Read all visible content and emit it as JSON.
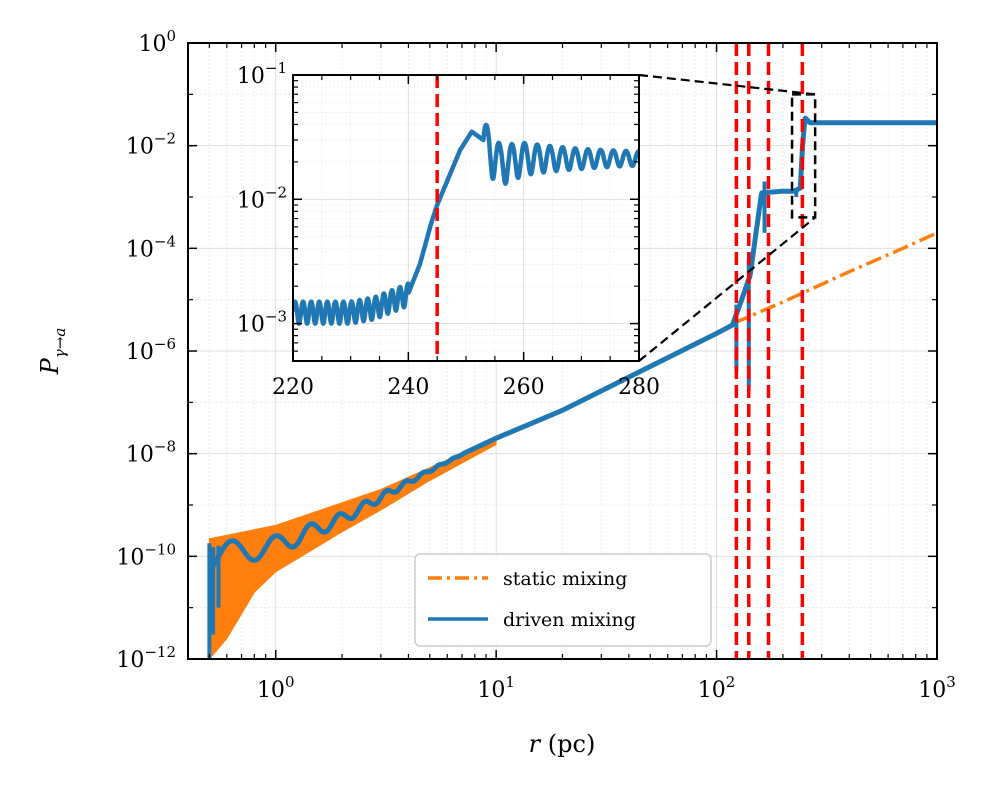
{
  "chart_data": [
    {
      "id": "main",
      "type": "line",
      "xscale": "log",
      "yscale": "log",
      "xlabel_var": "r",
      "xlabel_unit": "(pc)",
      "ylabel_var": "P",
      "ylabel_sub": "γ→a",
      "xlim": [
        0.4,
        1000
      ],
      "ylim": [
        1e-12,
        1
      ],
      "x_ticks": [
        {
          "value": 1,
          "base": "10",
          "exp": "0"
        },
        {
          "value": 10,
          "base": "10",
          "exp": "1"
        },
        {
          "value": 100,
          "base": "10",
          "exp": "2"
        },
        {
          "value": 1000,
          "base": "10",
          "exp": "3"
        }
      ],
      "y_ticks": [
        {
          "value": 1e-12,
          "base": "10",
          "exp": "−12"
        },
        {
          "value": 1e-10,
          "base": "10",
          "exp": "−10"
        },
        {
          "value": 1e-08,
          "base": "10",
          "exp": "−8"
        },
        {
          "value": 1e-06,
          "base": "10",
          "exp": "−6"
        },
        {
          "value": 0.0001,
          "base": "10",
          "exp": "−4"
        },
        {
          "value": 0.01,
          "base": "10",
          "exp": "−2"
        },
        {
          "value": 1,
          "base": "10",
          "exp": "0"
        }
      ],
      "grid": true,
      "legend_position": "bottom-right",
      "series": [
        {
          "name": "static mixing",
          "color": "#ff7f0e",
          "style": "dash-dot",
          "points": [
            [
              0.5,
              2.2e-10
            ],
            [
              1,
              4e-10
            ],
            [
              3,
              2e-09
            ],
            [
              10,
              2e-08
            ],
            [
              40,
              3e-07
            ],
            [
              120,
              3.5e-06
            ],
            [
              200,
              9e-06
            ],
            [
              400,
              3.5e-05
            ],
            [
              700,
              0.0001
            ],
            [
              1000,
              0.0002
            ]
          ],
          "envelope_lower": [
            [
              0.5,
              1e-12
            ],
            [
              0.6,
              2.5e-12
            ],
            [
              0.8,
              2e-11
            ],
            [
              1,
              5e-11
            ],
            [
              2,
              3e-10
            ],
            [
              3,
              8e-10
            ],
            [
              5,
              3e-09
            ],
            [
              8,
              9e-09
            ],
            [
              10,
              1.5e-08
            ]
          ]
        },
        {
          "name": "driven mixing",
          "color": "#1f77b4",
          "style": "solid",
          "points": [
            [
              0.5,
              1.8e-10
            ],
            [
              1,
              2.5e-10
            ],
            [
              2,
              7e-10
            ],
            [
              5,
              5e-09
            ],
            [
              10,
              2e-08
            ],
            [
              20,
              7e-08
            ],
            [
              50,
              5e-07
            ],
            [
              100,
              2.2e-06
            ],
            [
              118,
              3.2e-06
            ],
            [
              130,
              1e-05
            ],
            [
              142,
              3e-05
            ],
            [
              160,
              0.0012
            ],
            [
              200,
              0.0013
            ],
            [
              225,
              0.0013
            ],
            [
              240,
              0.0015
            ],
            [
              245,
              0.009
            ],
            [
              252,
              0.035
            ],
            [
              265,
              0.028
            ],
            [
              280,
              0.028
            ],
            [
              400,
              0.028
            ],
            [
              1000,
              0.028
            ]
          ],
          "spikes": [
            {
              "x": 123,
              "low": 4e-07,
              "high": 8e-06
            },
            {
              "x": 140,
              "low": 2e-07,
              "high": 6e-05
            },
            {
              "x": 165,
              "low": 0.0002,
              "high": 0.002
            },
            {
              "x": 230,
              "low": 0.001,
              "high": 0.0015
            }
          ]
        }
      ],
      "vlines": [
        {
          "x": 123,
          "color": "#ff0000"
        },
        {
          "x": 140,
          "color": "#ff0000"
        },
        {
          "x": 172,
          "color": "#ff0000"
        },
        {
          "x": 245,
          "color": "#ff0000"
        }
      ],
      "zoom_box": {
        "x": [
          220,
          280
        ],
        "y": [
          0.0004,
          0.1
        ]
      }
    },
    {
      "id": "inset",
      "type": "line",
      "xscale": "linear",
      "yscale": "log",
      "xlim": [
        220,
        280
      ],
      "ylim": [
        0.0005,
        0.1
      ],
      "x_ticks": [
        {
          "value": 220,
          "label": "220"
        },
        {
          "value": 240,
          "label": "240"
        },
        {
          "value": 260,
          "label": "260"
        },
        {
          "value": 280,
          "label": "280"
        }
      ],
      "y_ticks": [
        {
          "value": 0.001,
          "base": "10",
          "exp": "−3"
        },
        {
          "value": 0.01,
          "base": "10",
          "exp": "−2"
        },
        {
          "value": 0.1,
          "base": "10",
          "exp": "−1"
        }
      ],
      "series": [
        {
          "name": "driven mixing",
          "color": "#1f77b4",
          "base_points": [
            [
              220,
              0.00125
            ],
            [
              230,
              0.00125
            ],
            [
              234,
              0.00135
            ],
            [
              238,
              0.0016
            ],
            [
              240,
              0.00175
            ],
            [
              242,
              0.003
            ],
            [
              244,
              0.0065
            ],
            [
              245,
              0.009
            ],
            [
              247,
              0.015
            ],
            [
              249,
              0.025
            ],
            [
              251,
              0.035
            ],
            [
              253,
              0.03
            ],
            [
              256,
              0.02
            ],
            [
              260,
              0.022
            ],
            [
              270,
              0.0215
            ],
            [
              280,
              0.0215
            ]
          ],
          "oscillation": {
            "x_range": [
              220,
              240
            ],
            "period": 1.4,
            "rel_amplitude": 0.2
          }
        }
      ],
      "vlines": [
        {
          "x": 245,
          "color": "#ff0000"
        }
      ]
    }
  ],
  "legend": [
    {
      "label": "static mixing",
      "color": "#ff7f0e",
      "style": "dash-dot"
    },
    {
      "label": "driven mixing",
      "color": "#1f77b4",
      "style": "solid"
    }
  ]
}
